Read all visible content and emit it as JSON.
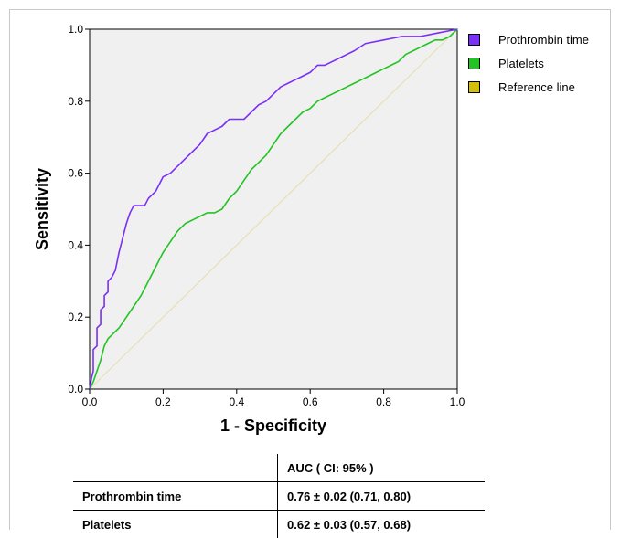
{
  "chart_data": {
    "type": "line",
    "xlabel": "1 - Specificity",
    "ylabel": "Sensitivity",
    "xlim": [
      0,
      1
    ],
    "ylim": [
      0,
      1
    ],
    "x_ticks": [
      "0.0",
      "0.2",
      "0.4",
      "0.6",
      "0.8",
      "1.0"
    ],
    "y_ticks": [
      "0.0",
      "0.2",
      "0.4",
      "0.6",
      "0.8",
      "1.0"
    ],
    "grid": false,
    "legend_position": "right",
    "series": [
      {
        "name": "Prothrombin time",
        "color": "#7b2ff7",
        "x": [
          0,
          0.005,
          0.01,
          0.01,
          0.02,
          0.02,
          0.03,
          0.03,
          0.04,
          0.04,
          0.05,
          0.05,
          0.06,
          0.07,
          0.08,
          0.09,
          0.1,
          0.11,
          0.12,
          0.13,
          0.15,
          0.16,
          0.18,
          0.2,
          0.22,
          0.24,
          0.26,
          0.28,
          0.3,
          0.32,
          0.34,
          0.36,
          0.38,
          0.4,
          0.42,
          0.44,
          0.46,
          0.48,
          0.5,
          0.52,
          0.54,
          0.56,
          0.58,
          0.6,
          0.62,
          0.64,
          0.66,
          0.68,
          0.7,
          0.72,
          0.75,
          0.8,
          0.85,
          0.9,
          0.95,
          1.0
        ],
        "y": [
          0,
          0.03,
          0.05,
          0.11,
          0.12,
          0.17,
          0.18,
          0.22,
          0.23,
          0.26,
          0.27,
          0.3,
          0.31,
          0.33,
          0.38,
          0.42,
          0.46,
          0.49,
          0.51,
          0.51,
          0.51,
          0.53,
          0.55,
          0.59,
          0.6,
          0.62,
          0.64,
          0.66,
          0.68,
          0.71,
          0.72,
          0.73,
          0.75,
          0.75,
          0.75,
          0.77,
          0.79,
          0.8,
          0.82,
          0.84,
          0.85,
          0.86,
          0.87,
          0.88,
          0.9,
          0.9,
          0.91,
          0.92,
          0.93,
          0.94,
          0.96,
          0.97,
          0.98,
          0.98,
          0.99,
          1.0
        ]
      },
      {
        "name": "Platelets",
        "color": "#22c322",
        "x": [
          0,
          0.01,
          0.02,
          0.03,
          0.04,
          0.05,
          0.06,
          0.08,
          0.1,
          0.12,
          0.14,
          0.16,
          0.18,
          0.2,
          0.22,
          0.24,
          0.26,
          0.28,
          0.3,
          0.32,
          0.34,
          0.36,
          0.38,
          0.4,
          0.42,
          0.44,
          0.46,
          0.48,
          0.5,
          0.52,
          0.54,
          0.56,
          0.58,
          0.6,
          0.62,
          0.64,
          0.66,
          0.68,
          0.7,
          0.72,
          0.74,
          0.76,
          0.78,
          0.8,
          0.82,
          0.84,
          0.86,
          0.88,
          0.9,
          0.92,
          0.94,
          0.96,
          0.98,
          1.0
        ],
        "y": [
          0,
          0.02,
          0.05,
          0.08,
          0.12,
          0.14,
          0.15,
          0.17,
          0.2,
          0.23,
          0.26,
          0.3,
          0.34,
          0.38,
          0.41,
          0.44,
          0.46,
          0.47,
          0.48,
          0.49,
          0.49,
          0.5,
          0.53,
          0.55,
          0.58,
          0.61,
          0.63,
          0.65,
          0.68,
          0.71,
          0.73,
          0.75,
          0.77,
          0.78,
          0.8,
          0.81,
          0.82,
          0.83,
          0.84,
          0.85,
          0.86,
          0.87,
          0.88,
          0.89,
          0.9,
          0.91,
          0.93,
          0.94,
          0.95,
          0.96,
          0.97,
          0.97,
          0.98,
          1.0
        ]
      },
      {
        "name": "Reference line",
        "color": "#e8dfb6",
        "swatch_color": "#d4c00a",
        "x": [
          0,
          1
        ],
        "y": [
          0,
          1
        ]
      }
    ]
  },
  "table": {
    "header": [
      "",
      "AUC ( CI: 95% )"
    ],
    "rows": [
      {
        "label": "Prothrombin time",
        "value": "0.76 ± 0.02 (0.71, 0.80)"
      },
      {
        "label": "Platelets",
        "value": "0.62 ± 0.03 (0.57, 0.68)"
      }
    ]
  }
}
